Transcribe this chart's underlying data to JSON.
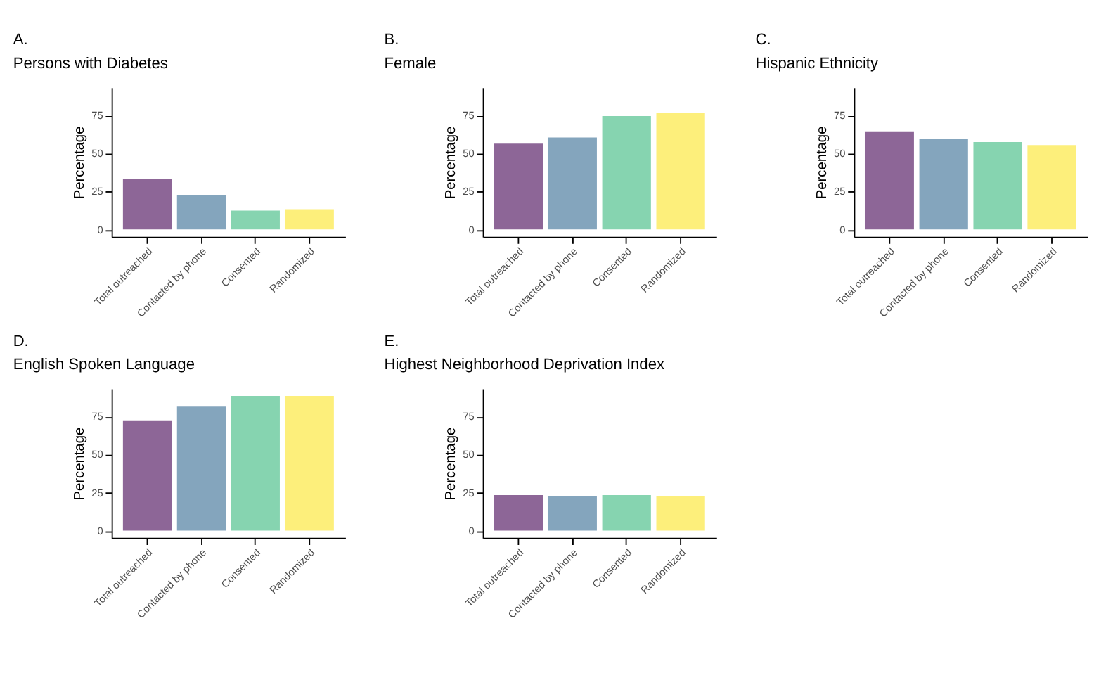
{
  "chart_data": [
    {
      "type": "bar",
      "title": "Persons with Diabetes",
      "annotations": [
        "A."
      ],
      "ylabel": "Percentage",
      "categories": [
        "Total outreached",
        "Contacted by phone",
        "Consented",
        "Randomized"
      ],
      "values": [
        34,
        23,
        13,
        14
      ],
      "colors": [
        "#8d6697",
        "#84a5bd",
        "#86d4b0",
        "#fdef7b"
      ],
      "ylim": [
        -4.45,
        93.45
      ],
      "yticks": [
        0,
        25,
        50,
        75
      ],
      "grid": false,
      "legend": false
    },
    {
      "type": "bar",
      "title": "Female",
      "annotations": [
        "B."
      ],
      "ylabel": "Percentage",
      "categories": [
        "Total outreached",
        "Contacted by phone",
        "Consented",
        "Randomized"
      ],
      "values": [
        57,
        61,
        75,
        77
      ],
      "colors": [
        "#8d6697",
        "#84a5bd",
        "#86d4b0",
        "#fdef7b"
      ],
      "ylim": [
        -4.45,
        93.45
      ],
      "yticks": [
        0,
        25,
        50,
        75
      ],
      "grid": false,
      "legend": false
    },
    {
      "type": "bar",
      "title": "Hispanic Ethnicity",
      "annotations": [
        "C."
      ],
      "ylabel": "Percentage",
      "categories": [
        "Total outreached",
        "Contacted by phone",
        "Consented",
        "Randomized"
      ],
      "values": [
        65,
        60,
        58,
        56
      ],
      "colors": [
        "#8d6697",
        "#84a5bd",
        "#86d4b0",
        "#fdef7b"
      ],
      "ylim": [
        -4.45,
        93.45
      ],
      "yticks": [
        0,
        25,
        50,
        75
      ],
      "grid": false,
      "legend": false
    },
    {
      "type": "bar",
      "title": "English Spoken Language",
      "annotations": [
        "D."
      ],
      "ylabel": "Percentage",
      "categories": [
        "Total outreached",
        "Contacted by phone",
        "Consented",
        "Randomized"
      ],
      "values": [
        73,
        82,
        89,
        89
      ],
      "colors": [
        "#8d6697",
        "#84a5bd",
        "#86d4b0",
        "#fdef7b"
      ],
      "ylim": [
        -4.45,
        93.45
      ],
      "yticks": [
        0,
        25,
        50,
        75
      ],
      "grid": false,
      "legend": false
    },
    {
      "type": "bar",
      "title": "Highest Neighborhood Deprivation Index",
      "annotations": [
        "E."
      ],
      "ylabel": "Percentage",
      "categories": [
        "Total outreached",
        "Contacted by phone",
        "Consented",
        "Randomized"
      ],
      "values": [
        24,
        23,
        24,
        23
      ],
      "colors": [
        "#8d6697",
        "#84a5bd",
        "#86d4b0",
        "#fdef7b"
      ],
      "ylim": [
        -4.45,
        93.45
      ],
      "yticks": [
        0,
        25,
        50,
        75
      ],
      "grid": false,
      "legend": false
    }
  ]
}
